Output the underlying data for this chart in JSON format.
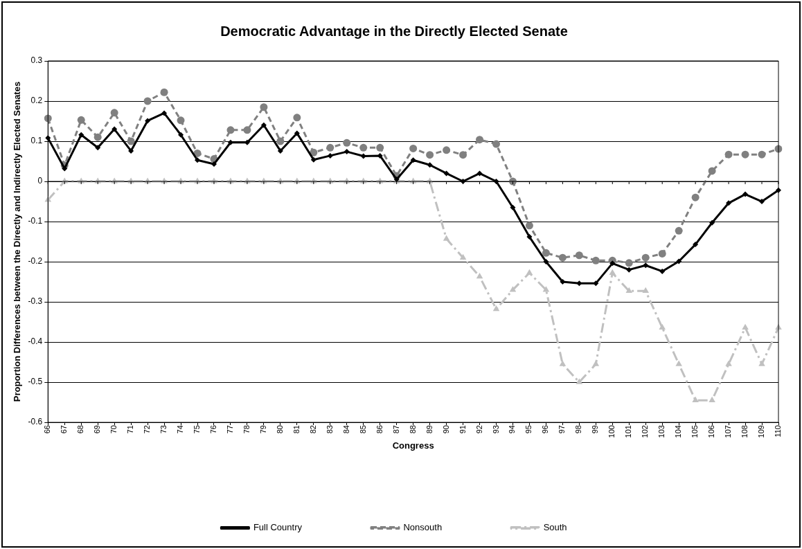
{
  "chart_data": {
    "type": "line",
    "title": "Democratic Advantage in the Directly Elected Senate",
    "xlabel": "Congress",
    "ylabel": "Proportion Differences between the Directly and Indirectly Elected Senates",
    "categories": [
      "66",
      "67",
      "68",
      "69",
      "70",
      "71",
      "72",
      "73",
      "74",
      "75",
      "76",
      "77",
      "78",
      "79",
      "80",
      "81",
      "82",
      "83",
      "84",
      "85",
      "86",
      "87",
      "88",
      "89",
      "90",
      "91",
      "92",
      "93",
      "94",
      "95",
      "96",
      "97",
      "98",
      "99",
      "100",
      "101",
      "102",
      "103",
      "104",
      "105",
      "106",
      "107",
      "108",
      "109",
      "110"
    ],
    "series": [
      {
        "name": "Full Country",
        "color": "#000000",
        "marker": "diamond",
        "line_style": "solid",
        "values": [
          0.108,
          0.032,
          0.116,
          0.084,
          0.13,
          0.076,
          0.151,
          0.17,
          0.116,
          0.053,
          0.043,
          0.097,
          0.097,
          0.14,
          0.076,
          0.12,
          0.054,
          0.064,
          0.074,
          0.063,
          0.064,
          0.005,
          0.053,
          0.041,
          0.02,
          0,
          0.02,
          0,
          -0.065,
          -0.138,
          -0.2,
          -0.25,
          -0.254,
          -0.254,
          -0.204,
          -0.22,
          -0.209,
          -0.224,
          -0.199,
          -0.157,
          -0.103,
          -0.054,
          -0.032,
          -0.05,
          -0.022
        ]
      },
      {
        "name": "Nonsouth",
        "color": "#808080",
        "marker": "circle",
        "line_style": "dashed",
        "values": [
          0.157,
          0.04,
          0.153,
          0.11,
          0.171,
          0.1,
          0.2,
          0.222,
          0.152,
          0.07,
          0.056,
          0.128,
          0.128,
          0.185,
          0.1,
          0.159,
          0.072,
          0.084,
          0.096,
          0.084,
          0.084,
          0.014,
          0.082,
          0.066,
          0.078,
          0.066,
          0.104,
          0.093,
          0,
          -0.11,
          -0.178,
          -0.19,
          -0.184,
          -0.197,
          -0.197,
          -0.203,
          -0.19,
          -0.18,
          -0.123,
          -0.04,
          0.026,
          0.067,
          0.067,
          0.067,
          0.081
        ]
      },
      {
        "name": "South",
        "color": "#c0c0c0",
        "marker": "triangle",
        "line_style": "dashdot",
        "values": [
          -0.046,
          0,
          0,
          0,
          0,
          0,
          0,
          0,
          0,
          0,
          0,
          0,
          0,
          0,
          0,
          0,
          0,
          0,
          0,
          0,
          0,
          0,
          0,
          0,
          -0.143,
          -0.19,
          -0.237,
          -0.318,
          -0.27,
          -0.228,
          -0.27,
          -0.455,
          -0.5,
          -0.455,
          -0.228,
          -0.273,
          -0.273,
          -0.364,
          -0.455,
          -0.545,
          -0.545,
          -0.455,
          -0.364,
          -0.455,
          -0.364
        ]
      }
    ],
    "ylim": [
      -0.6,
      0.3
    ],
    "yticks": [
      -0.6,
      -0.5,
      -0.4,
      -0.3,
      -0.2,
      -0.1,
      0,
      0.1,
      0.2,
      0.3
    ],
    "grid": "y",
    "legend": "bottom"
  }
}
